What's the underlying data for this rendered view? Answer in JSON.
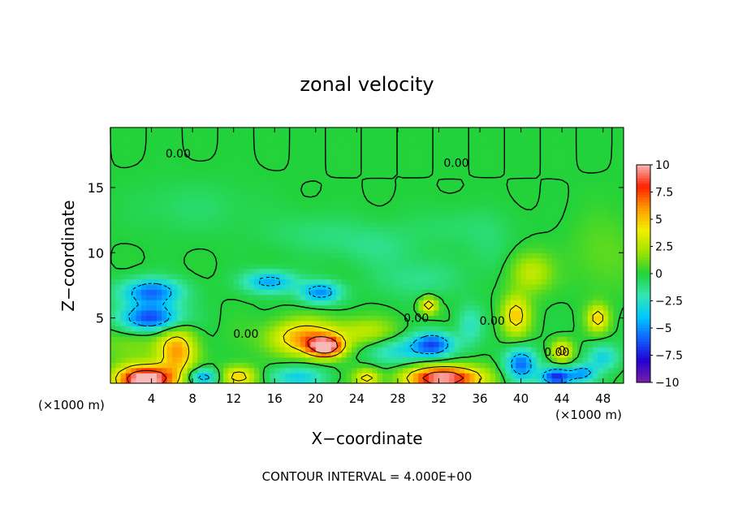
{
  "chart_data": {
    "type": "heatmap",
    "title": "zonal velocity",
    "xlabel": "X−coordinate",
    "ylabel": "Z−coordinate",
    "x_unit_left": "(×1000 m)",
    "x_unit_right": "(×1000 m)",
    "footer": "CONTOUR INTERVAL = 4.000E+00",
    "xlim": [
      0,
      50
    ],
    "ylim": [
      0,
      19.6
    ],
    "x_ticks": [
      4,
      8,
      12,
      16,
      20,
      24,
      28,
      32,
      36,
      40,
      44,
      48
    ],
    "y_ticks": [
      5,
      10,
      15
    ],
    "colorbar": {
      "range": [
        -10,
        10
      ],
      "ticks": [
        {
          "value": 10,
          "label": "10"
        },
        {
          "value": 7.5,
          "label": "7.5"
        },
        {
          "value": 5,
          "label": "5"
        },
        {
          "value": 2.5,
          "label": "2.5"
        },
        {
          "value": 0,
          "label": "0"
        },
        {
          "value": -2.5,
          "label": "−2.5"
        },
        {
          "value": -5,
          "label": "−5"
        },
        {
          "value": -7.5,
          "label": "−7.5"
        },
        {
          "value": -10,
          "label": "−10"
        }
      ],
      "colors": [
        "#7a1fa8",
        "#2400d4",
        "#1060ff",
        "#00c8ff",
        "#33e6b0",
        "#22d23a",
        "#a0e400",
        "#f4ee00",
        "#ff9a00",
        "#ff2000",
        "#f7b8b8"
      ]
    },
    "contour_labels": [
      {
        "text": "0.00",
        "x": 6.6,
        "z": 17.6
      },
      {
        "text": "0.00",
        "x": 33.7,
        "z": 16.9
      },
      {
        "text": "0.00",
        "x": 13.2,
        "z": 3.8
      },
      {
        "text": "0.00",
        "x": 29.8,
        "z": 5.0
      },
      {
        "text": "0.00",
        "x": 37.2,
        "z": 4.8
      },
      {
        "text": "0.00",
        "x": 43.5,
        "z": 2.4
      }
    ],
    "features": [
      {
        "x": 25,
        "z": 12,
        "v": 0.0,
        "rx": 60,
        "rz": 20
      },
      {
        "x": 8,
        "z": 13.5,
        "v": -0.8,
        "rx": 6,
        "rz": 2
      },
      {
        "x": 20,
        "z": 11.5,
        "v": -1.0,
        "rx": 5,
        "rz": 1.5
      },
      {
        "x": 26,
        "z": 10.5,
        "v": -1.2,
        "rx": 4,
        "rz": 1.5
      },
      {
        "x": 34,
        "z": 12,
        "v": -0.8,
        "rx": 5,
        "rz": 1.5
      },
      {
        "x": 30,
        "z": 8,
        "v": -1.5,
        "rx": 4,
        "rz": 1.5
      },
      {
        "x": 4,
        "z": 7.0,
        "v": -6.0,
        "rx": 3.0,
        "rz": 1.0
      },
      {
        "x": 4,
        "z": 5.0,
        "v": -7.0,
        "rx": 3.0,
        "rz": 1.0
      },
      {
        "x": 2,
        "z": 3.0,
        "v": 1.5,
        "rx": 3,
        "rz": 1.5
      },
      {
        "x": 15.5,
        "z": 7.8,
        "v": -5.0,
        "rx": 2.5,
        "rz": 0.8
      },
      {
        "x": 20.5,
        "z": 7.0,
        "v": -5.5,
        "rx": 2.0,
        "rz": 0.8
      },
      {
        "x": 3.5,
        "z": 0.3,
        "v": 12.0,
        "rx": 2.8,
        "rz": 1.0
      },
      {
        "x": 6.5,
        "z": 2.5,
        "v": 6.0,
        "rx": 1.8,
        "rz": 1.8
      },
      {
        "x": 9,
        "z": 0.5,
        "v": -6.0,
        "rx": 1.5,
        "rz": 0.6
      },
      {
        "x": 12.5,
        "z": 0.5,
        "v": 5.5,
        "rx": 1.8,
        "rz": 0.8
      },
      {
        "x": 19,
        "z": 3.5,
        "v": 6.0,
        "rx": 3.5,
        "rz": 1.3
      },
      {
        "x": 21,
        "z": 2.8,
        "v": 10.0,
        "rx": 1.6,
        "rz": 0.7
      },
      {
        "x": 25,
        "z": 4.0,
        "v": 2.5,
        "rx": 3.0,
        "rz": 1.0
      },
      {
        "x": 18,
        "z": 0.5,
        "v": -3.5,
        "rx": 3.0,
        "rz": 0.8
      },
      {
        "x": 25,
        "z": 0.4,
        "v": 5.0,
        "rx": 1.2,
        "rz": 0.7
      },
      {
        "x": 28,
        "z": 2.5,
        "v": -3.0,
        "rx": 3.0,
        "rz": 1.0
      },
      {
        "x": 31.5,
        "z": 3.0,
        "v": -6.5,
        "rx": 2.0,
        "rz": 0.9
      },
      {
        "x": 32.5,
        "z": 0.4,
        "v": 11.0,
        "rx": 3.5,
        "rz": 0.9
      },
      {
        "x": 31,
        "z": 6.0,
        "v": 6.0,
        "rx": 0.8,
        "rz": 0.6
      },
      {
        "x": 35,
        "z": 4.5,
        "v": -2.5,
        "rx": 1.2,
        "rz": 1.5
      },
      {
        "x": 39.5,
        "z": 5.2,
        "v": 5.0,
        "rx": 1.3,
        "rz": 1.5
      },
      {
        "x": 41,
        "z": 8.5,
        "v": 3.0,
        "rx": 2.0,
        "rz": 1.5
      },
      {
        "x": 40,
        "z": 1.5,
        "v": -6.0,
        "rx": 1.5,
        "rz": 1.2
      },
      {
        "x": 43.5,
        "z": 0.5,
        "v": -8.5,
        "rx": 1.5,
        "rz": 0.7
      },
      {
        "x": 44,
        "z": 2.5,
        "v": 5.0,
        "rx": 1.0,
        "rz": 0.8
      },
      {
        "x": 47.5,
        "z": 5.0,
        "v": 5.0,
        "rx": 1.0,
        "rz": 1.0
      },
      {
        "x": 48,
        "z": 2.0,
        "v": -3.5,
        "rx": 1.5,
        "rz": 1.0
      },
      {
        "x": 46,
        "z": 0.8,
        "v": -5.0,
        "rx": 1.2,
        "rz": 0.6
      },
      {
        "x": 48,
        "z": 10,
        "v": 1.0,
        "rx": 3,
        "rz": 3
      },
      {
        "x": 37,
        "z": 10,
        "v": -0.8,
        "rx": 2,
        "rz": 2
      }
    ]
  }
}
